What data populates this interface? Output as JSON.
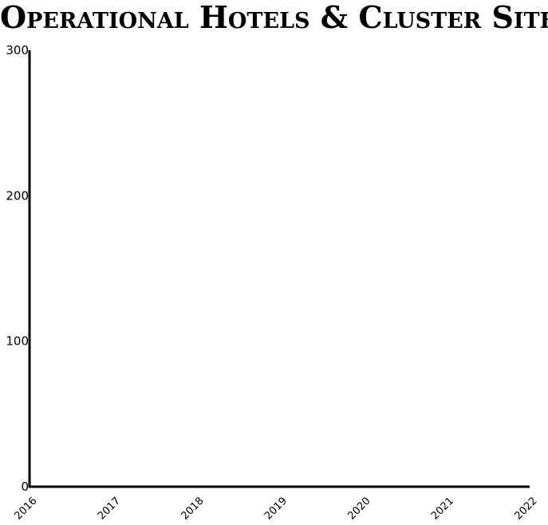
{
  "chart_data": {
    "type": "line",
    "title": "Operational Hotels & Cluster Sites",
    "xlabel": "",
    "ylabel": "",
    "x": [
      "2016",
      "2017",
      "2018",
      "2019",
      "2020",
      "2021",
      "2022"
    ],
    "xlim": [
      "2016",
      "2022"
    ],
    "ylim": [
      0,
      300
    ],
    "yticks": [
      0,
      100,
      200,
      300
    ],
    "series": [],
    "grid": false,
    "legend": "none",
    "colors": {
      "axis": "#000000",
      "text": "#000000",
      "background": "#ffffff"
    }
  }
}
